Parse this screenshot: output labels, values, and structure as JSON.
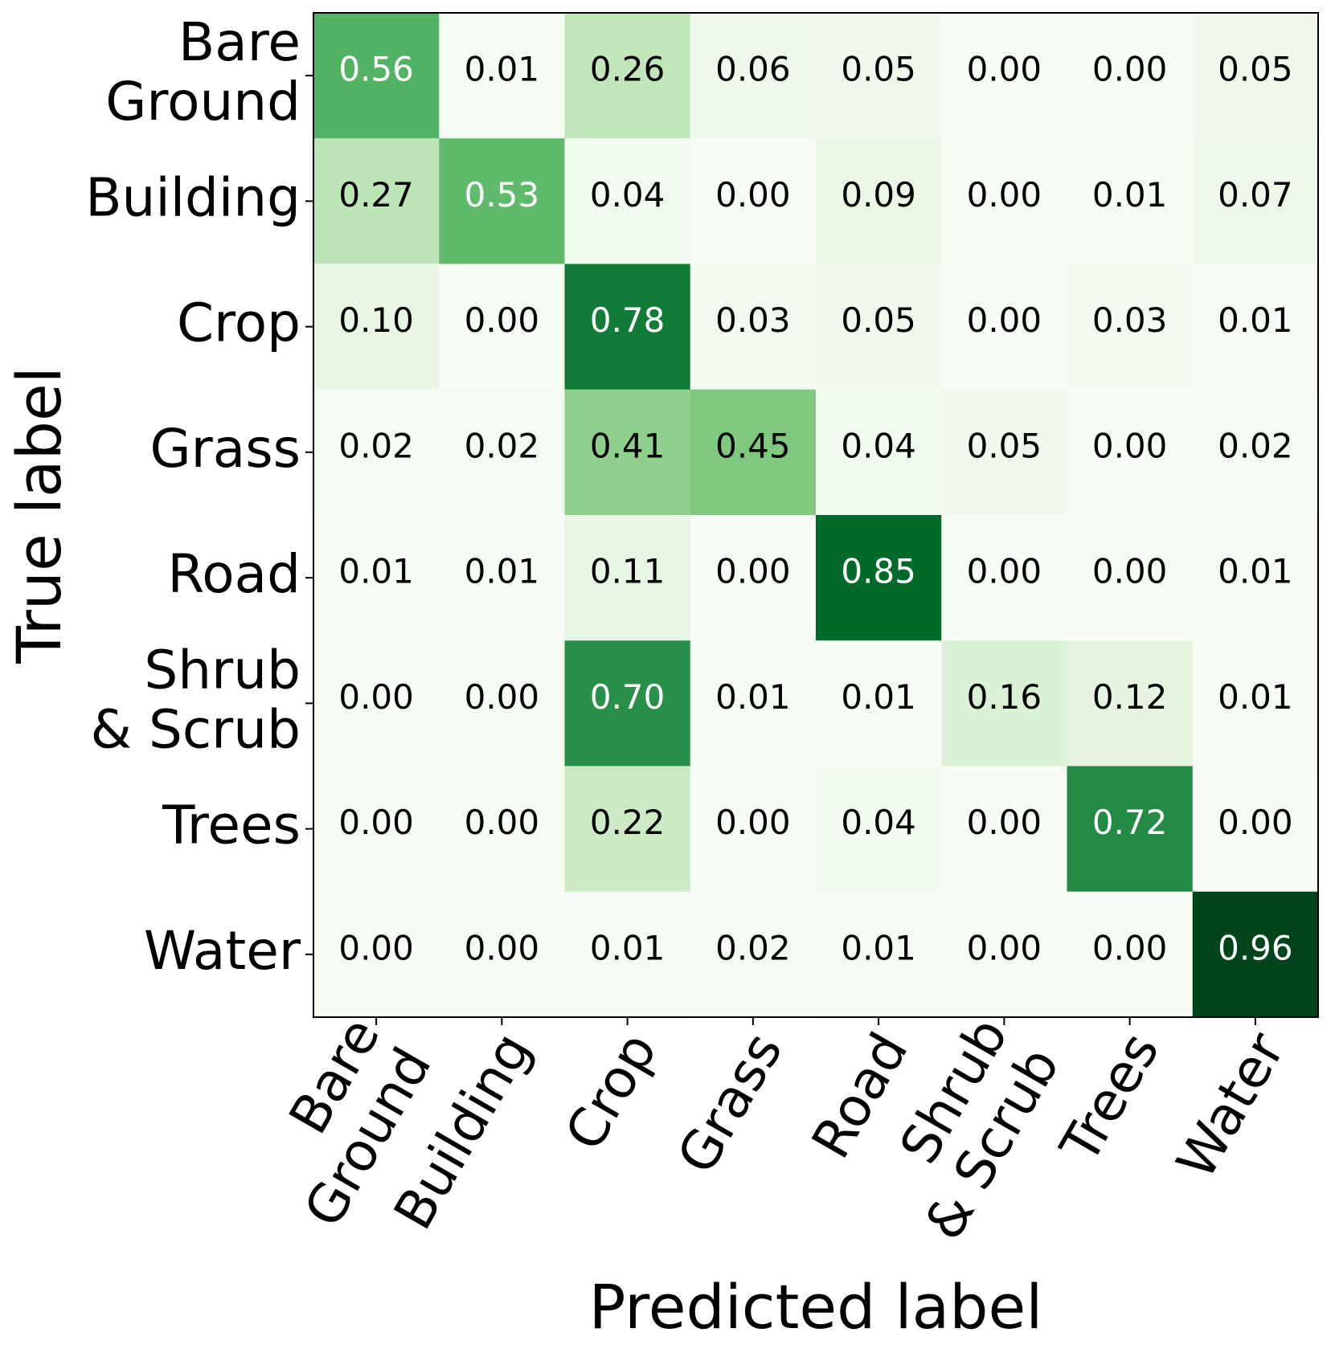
{
  "chart_data": {
    "type": "heatmap",
    "title": "",
    "xlabel": "Predicted label",
    "ylabel": "True label",
    "x_categories": [
      [
        "Bare",
        "Ground"
      ],
      [
        "Building"
      ],
      [
        "Crop"
      ],
      [
        "Grass"
      ],
      [
        "Road"
      ],
      [
        "Shrub",
        "& Scrub"
      ],
      [
        "Trees"
      ],
      [
        "Water"
      ]
    ],
    "y_categories": [
      [
        "Bare",
        "Ground"
      ],
      [
        "Building"
      ],
      [
        "Crop"
      ],
      [
        "Grass"
      ],
      [
        "Road"
      ],
      [
        "Shrub",
        "& Scrub"
      ],
      [
        "Trees"
      ],
      [
        "Water"
      ]
    ],
    "colormap": "Greens",
    "vmin": 0,
    "vmax": 0.96,
    "value_format": "0.00",
    "values": [
      [
        0.56,
        0.01,
        0.26,
        0.06,
        0.05,
        0.0,
        0.0,
        0.05
      ],
      [
        0.27,
        0.53,
        0.04,
        0.0,
        0.09,
        0.0,
        0.01,
        0.07
      ],
      [
        0.1,
        0.0,
        0.78,
        0.03,
        0.05,
        0.0,
        0.03,
        0.01
      ],
      [
        0.02,
        0.02,
        0.41,
        0.45,
        0.04,
        0.05,
        0.0,
        0.02
      ],
      [
        0.01,
        0.01,
        0.11,
        0.0,
        0.85,
        0.0,
        0.0,
        0.01
      ],
      [
        0.0,
        0.0,
        0.7,
        0.01,
        0.01,
        0.16,
        0.12,
        0.01
      ],
      [
        0.0,
        0.0,
        0.22,
        0.0,
        0.04,
        0.0,
        0.72,
        0.0
      ],
      [
        0.0,
        0.0,
        0.01,
        0.02,
        0.01,
        0.0,
        0.0,
        0.96
      ]
    ]
  }
}
